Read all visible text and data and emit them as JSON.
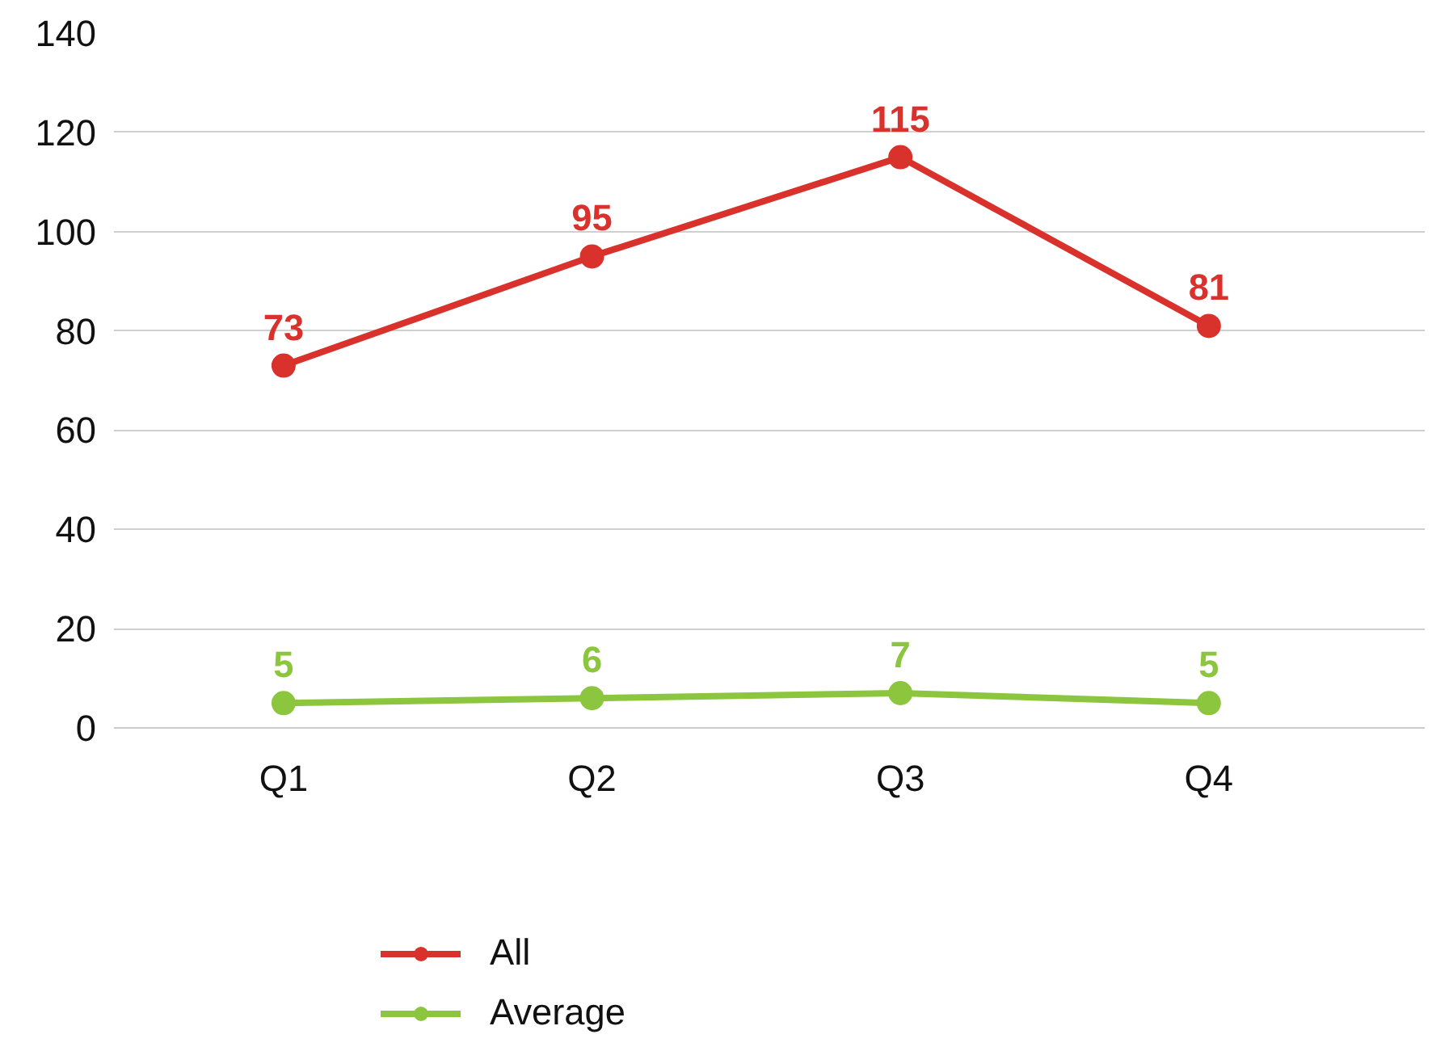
{
  "chart_data": {
    "type": "line",
    "categories": [
      "Q1",
      "Q2",
      "Q3",
      "Q4"
    ],
    "series": [
      {
        "name": "All",
        "color": "#d9312b",
        "values": [
          73,
          95,
          115,
          81
        ]
      },
      {
        "name": "Average",
        "color": "#8cc63f",
        "values": [
          5,
          6,
          7,
          5
        ]
      }
    ],
    "ylim": [
      0,
      140
    ],
    "yticks": [
      0,
      20,
      40,
      60,
      80,
      100,
      120,
      140
    ],
    "grid": "y",
    "legend": "bottom",
    "marker": "circle",
    "line_style": "solid",
    "data_labels": true
  }
}
